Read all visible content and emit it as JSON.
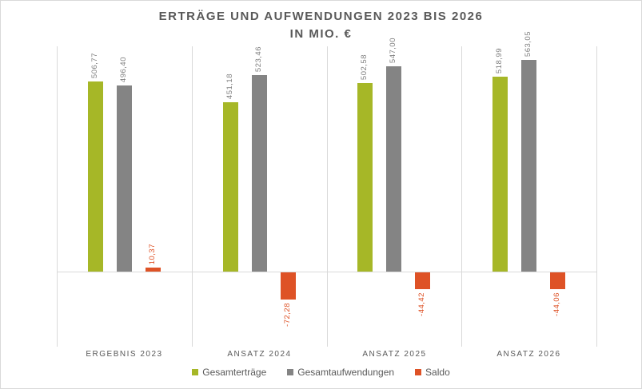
{
  "header": {
    "title": "ERTRÄGE UND AUFWENDUNGEN 2023 BIS 2026",
    "subtitle": "IN MIO. €"
  },
  "chart_data": {
    "type": "bar",
    "title": "ERTRÄGE UND AUFWENDUNGEN 2023 BIS 2026 IN MIO. €",
    "categories": [
      "ERGEBNIS 2023",
      "ANSATZ 2024",
      "ANSATZ 2025",
      "ANSATZ 2026"
    ],
    "series": [
      {
        "key": "gesamtertraege",
        "name": "Gesamterträge",
        "color": "#a6b727",
        "label_color": "#7f7f7f",
        "values": [
          506.77,
          451.18,
          502.58,
          518.99
        ],
        "labels": [
          "506,77",
          "451,18",
          "502,58",
          "518,99"
        ]
      },
      {
        "key": "gesamtaufwendungen",
        "name": "Gesamtaufwendungen",
        "color": "#848484",
        "label_color": "#7f7f7f",
        "values": [
          496.4,
          523.46,
          547.0,
          563.05
        ],
        "labels": [
          "496,40",
          "523,46",
          "547,00",
          "563,05"
        ]
      },
      {
        "key": "saldo",
        "name": "Saldo",
        "color": "#de5226",
        "label_color": "#de5226",
        "values": [
          10.37,
          -72.28,
          -44.42,
          -44.06
        ],
        "labels": [
          "10,37",
          "-72,28",
          "-44,42",
          "-44,06"
        ]
      }
    ],
    "xlabel": "",
    "ylabel": "",
    "ylim": [
      -200,
      600
    ],
    "grid": "vertical category separators, zero baseline",
    "legend_position": "bottom",
    "value_labels": "rotated 90°, above positive bars / below negative bars"
  },
  "colors": {
    "grid": "#d9d9d9",
    "text": "#595959",
    "value_label": "#7f7f7f"
  }
}
